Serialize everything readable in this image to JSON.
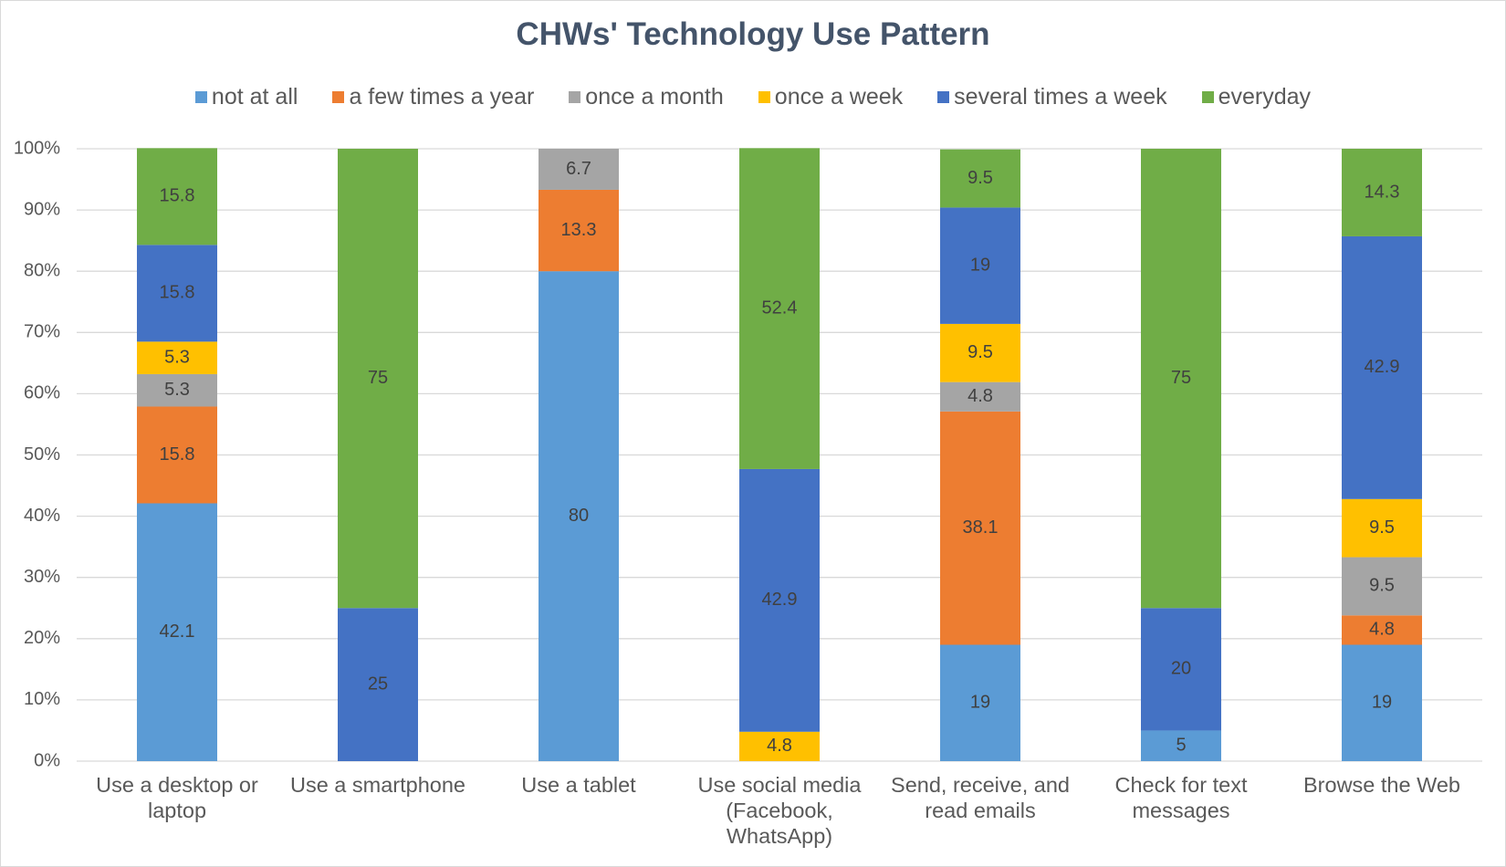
{
  "chart_data": {
    "type": "stacked_bar",
    "title": "CHWs' Technology Use Pattern",
    "categories": [
      "Use a desktop or laptop",
      "Use a smartphone",
      "Use a tablet",
      "Use social media (Facebook, WhatsApp)",
      "Send, receive, and read emails",
      "Check for text messages",
      "Browse the Web"
    ],
    "series": [
      {
        "name": "not at all",
        "color": "#5b9bd5",
        "values": [
          42.1,
          null,
          80,
          null,
          19,
          5,
          19
        ]
      },
      {
        "name": "a few times a year",
        "color": "#ed7d31",
        "values": [
          15.8,
          null,
          13.3,
          null,
          38.1,
          null,
          4.8
        ]
      },
      {
        "name": "once a month",
        "color": "#a5a5a5",
        "values": [
          5.3,
          null,
          6.7,
          null,
          4.8,
          null,
          9.5
        ]
      },
      {
        "name": "once a week",
        "color": "#ffc000",
        "values": [
          5.3,
          null,
          null,
          4.8,
          9.5,
          null,
          9.5
        ]
      },
      {
        "name": "several times a week",
        "color": "#4472c4",
        "values": [
          15.8,
          25,
          null,
          42.9,
          19,
          20,
          42.9
        ]
      },
      {
        "name": "everyday",
        "color": "#70ad47",
        "values": [
          15.8,
          75,
          null,
          52.4,
          9.5,
          75,
          14.3
        ]
      }
    ],
    "ylim": [
      0,
      100
    ],
    "yticks": [
      {
        "value": 0,
        "label": "0%"
      },
      {
        "value": 10,
        "label": "10%"
      },
      {
        "value": 20,
        "label": "20%"
      },
      {
        "value": 30,
        "label": "30%"
      },
      {
        "value": 40,
        "label": "40%"
      },
      {
        "value": 50,
        "label": "50%"
      },
      {
        "value": 60,
        "label": "60%"
      },
      {
        "value": 70,
        "label": "70%"
      },
      {
        "value": 80,
        "label": "80%"
      },
      {
        "value": 90,
        "label": "90%"
      },
      {
        "value": 100,
        "label": "100%"
      }
    ],
    "grid": true,
    "legend": "top"
  }
}
